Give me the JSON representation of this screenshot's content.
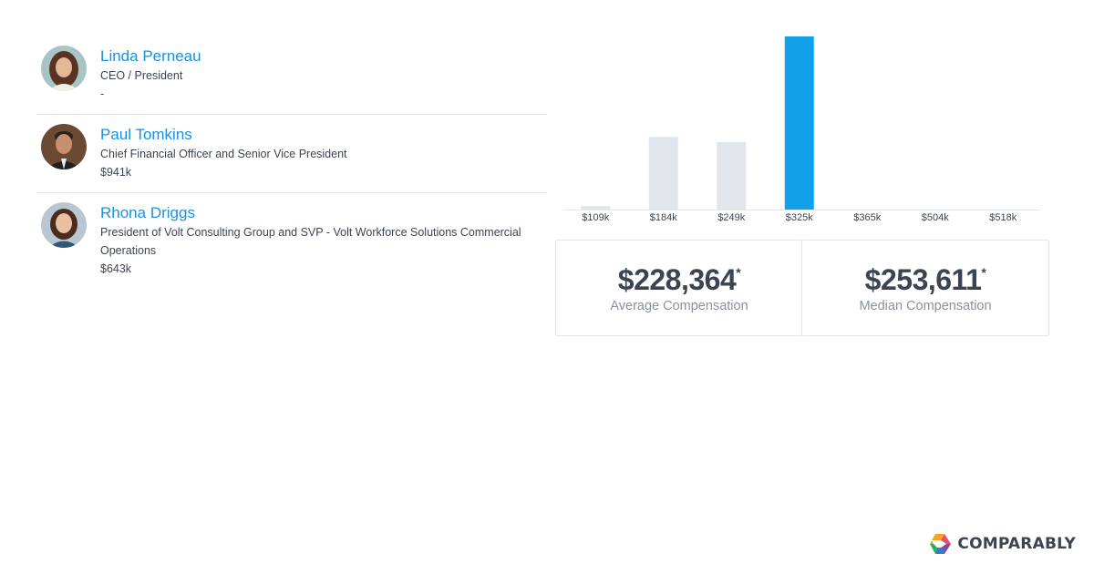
{
  "executives": [
    {
      "name": "Linda Perneau",
      "title": "CEO / President",
      "pay": "-"
    },
    {
      "name": "Paul Tomkins",
      "title": "Chief Financial Officer and Senior Vice President",
      "pay": "$941k"
    },
    {
      "name": "Rhona Driggs",
      "title": "President of Volt Consulting Group and SVP - Volt Workforce Solutions Commercial Operations",
      "pay": "$643k"
    }
  ],
  "chart_data": {
    "type": "bar",
    "categories": [
      "$109k",
      "$184k",
      "$249k",
      "$325k",
      "$365k",
      "$504k",
      "$518k"
    ],
    "values": [
      2,
      42,
      39,
      100,
      0,
      0,
      0
    ],
    "highlight_index": 3,
    "ylim": [
      0,
      100
    ],
    "colors": {
      "bar": "#e1e6ec",
      "highlight": "#12a0e8",
      "axis": "#e3e6ea"
    }
  },
  "stats": {
    "average": {
      "value": "$228,364",
      "marker": "*",
      "label": "Average Compensation"
    },
    "median": {
      "value": "$253,611",
      "marker": "*",
      "label": "Median Compensation"
    }
  },
  "brand": {
    "name": "COMPARABLY"
  }
}
